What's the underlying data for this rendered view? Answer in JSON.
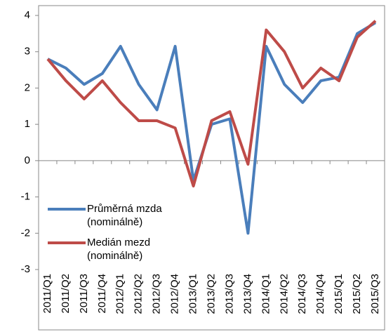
{
  "chart_data": {
    "type": "line",
    "categories": [
      "2011/Q1",
      "2011/Q2",
      "2011/Q3",
      "2011/Q4",
      "2012/Q1",
      "2012/Q2",
      "2012/Q3",
      "2012/Q4",
      "2013/Q1",
      "2013/Q2",
      "2013/Q3",
      "2013/Q4",
      "2014/Q1",
      "2014/Q2",
      "2014/Q3",
      "2014/Q4",
      "2015/Q1",
      "2015/Q2",
      "2015/Q3"
    ],
    "series": [
      {
        "name": "Průměrná mzda (nominálně)",
        "color": "#4a7ebb",
        "values": [
          2.8,
          2.55,
          2.1,
          2.4,
          3.15,
          2.1,
          1.4,
          3.15,
          -0.55,
          1.0,
          1.15,
          -2.0,
          3.15,
          2.1,
          1.6,
          2.2,
          2.3,
          3.5,
          3.8
        ]
      },
      {
        "name": "Medián mezd (nominálně)",
        "color": "#be4b48",
        "values": [
          2.8,
          2.2,
          1.7,
          2.2,
          1.6,
          1.1,
          1.1,
          0.9,
          -0.7,
          1.1,
          1.35,
          -0.1,
          3.6,
          3.0,
          2.0,
          2.55,
          2.2,
          3.4,
          3.85
        ]
      }
    ],
    "ylim": [
      -3,
      4
    ],
    "yticks": [
      -3,
      -2,
      -1,
      0,
      1,
      2,
      3,
      4
    ],
    "legend": "lower left"
  }
}
